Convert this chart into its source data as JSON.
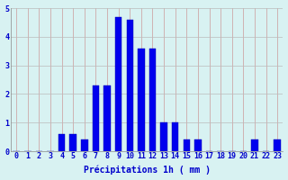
{
  "categories": [
    0,
    1,
    2,
    3,
    4,
    5,
    6,
    7,
    8,
    9,
    10,
    11,
    12,
    13,
    14,
    15,
    16,
    17,
    18,
    19,
    20,
    21,
    22,
    23
  ],
  "values": [
    0,
    0,
    0,
    0,
    0.6,
    0.6,
    0.4,
    2.3,
    2.3,
    4.7,
    4.6,
    3.6,
    3.6,
    1.0,
    1.0,
    0.4,
    0.4,
    0,
    0,
    0,
    0,
    0.4,
    0,
    0.4
  ],
  "bar_color": "#0000ee",
  "bar_edge_color": "#0000aa",
  "background_color": "#d8f2f2",
  "grid_color": "#bbbbbb",
  "grid_color_v": "#cc9999",
  "text_color": "#0000cc",
  "xlabel": "Précipitations 1h ( mm )",
  "ylim": [
    0,
    5
  ],
  "yticks": [
    0,
    1,
    2,
    3,
    4,
    5
  ],
  "xlabel_fontsize": 7,
  "tick_fontsize": 6,
  "bar_width": 0.6
}
